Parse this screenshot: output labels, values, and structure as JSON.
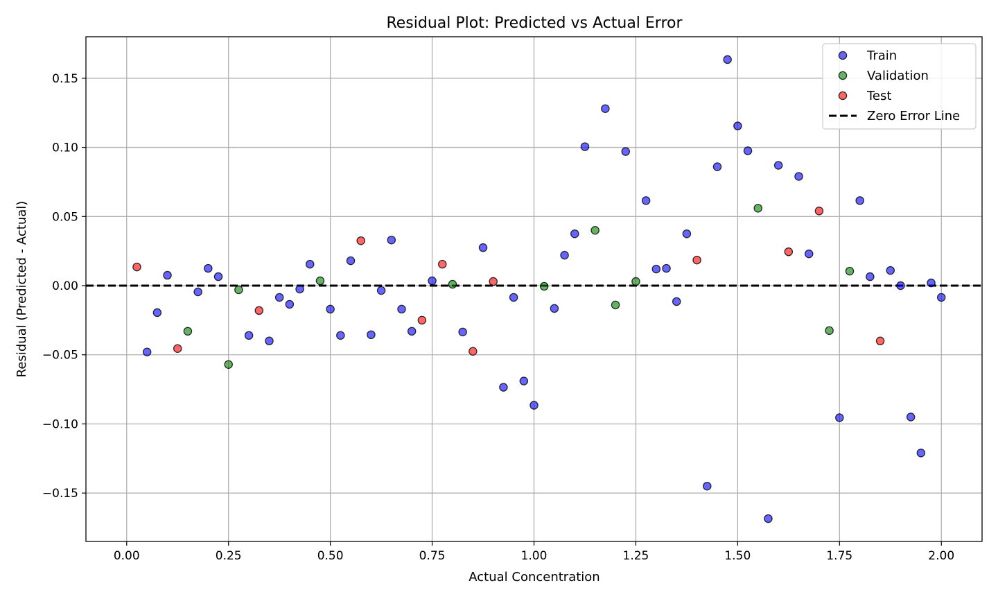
{
  "chart_data": {
    "type": "scatter",
    "title": "Residual Plot: Predicted vs Actual Error",
    "xlabel": "Actual Concentration",
    "ylabel": "Residual (Predicted - Actual)",
    "xlim": [
      -0.1,
      2.1
    ],
    "ylim": [
      -0.185,
      0.18
    ],
    "xticks": [
      0.0,
      0.25,
      0.5,
      0.75,
      1.0,
      1.25,
      1.5,
      1.75,
      2.0
    ],
    "xtick_labels": [
      "0.00",
      "0.25",
      "0.50",
      "0.75",
      "1.00",
      "1.25",
      "1.50",
      "1.75",
      "2.00"
    ],
    "yticks": [
      -0.15,
      -0.1,
      -0.05,
      0.0,
      0.05,
      0.1,
      0.15
    ],
    "ytick_labels": [
      "−0.15",
      "−0.10",
      "−0.05",
      "0.00",
      "0.05",
      "0.10",
      "0.15"
    ],
    "grid": true,
    "legend_position": "top-right",
    "series": [
      {
        "name": "Train",
        "color": "#0000ff",
        "points": [
          [
            0.05,
            -0.048
          ],
          [
            0.075,
            -0.0195
          ],
          [
            0.1,
            0.0075
          ],
          [
            0.175,
            -0.0045
          ],
          [
            0.2,
            0.0125
          ],
          [
            0.225,
            0.0065
          ],
          [
            0.3,
            -0.036
          ],
          [
            0.35,
            -0.04
          ],
          [
            0.375,
            -0.0085
          ],
          [
            0.4,
            -0.0135
          ],
          [
            0.425,
            -0.0025
          ],
          [
            0.45,
            0.0155
          ],
          [
            0.5,
            -0.017
          ],
          [
            0.525,
            -0.036
          ],
          [
            0.55,
            0.018
          ],
          [
            0.6,
            -0.0355
          ],
          [
            0.625,
            -0.0035
          ],
          [
            0.65,
            0.033
          ],
          [
            0.675,
            -0.017
          ],
          [
            0.7,
            -0.033
          ],
          [
            0.75,
            0.0035
          ],
          [
            0.825,
            -0.0335
          ],
          [
            0.875,
            0.0275
          ],
          [
            0.925,
            -0.0735
          ],
          [
            0.95,
            -0.0085
          ],
          [
            0.975,
            -0.069
          ],
          [
            1.0,
            -0.0865
          ],
          [
            1.05,
            -0.0165
          ],
          [
            1.075,
            0.022
          ],
          [
            1.1,
            0.0375
          ],
          [
            1.125,
            0.1005
          ],
          [
            1.175,
            0.128
          ],
          [
            1.225,
            0.097
          ],
          [
            1.275,
            0.0615
          ],
          [
            1.3,
            0.012
          ],
          [
            1.325,
            0.0125
          ],
          [
            1.35,
            -0.0115
          ],
          [
            1.375,
            0.0375
          ],
          [
            1.425,
            -0.145
          ],
          [
            1.45,
            0.086
          ],
          [
            1.475,
            0.1635
          ],
          [
            1.5,
            0.1155
          ],
          [
            1.525,
            0.0975
          ],
          [
            1.575,
            -0.1685
          ],
          [
            1.6,
            0.087
          ],
          [
            1.65,
            0.079
          ],
          [
            1.675,
            0.023
          ],
          [
            1.75,
            -0.0955
          ],
          [
            1.8,
            0.0615
          ],
          [
            1.825,
            0.0065
          ],
          [
            1.875,
            0.011
          ],
          [
            1.9,
            0.0
          ],
          [
            1.925,
            -0.095
          ],
          [
            1.95,
            -0.121
          ],
          [
            1.975,
            0.002
          ],
          [
            2.0,
            -0.0085
          ]
        ]
      },
      {
        "name": "Validation",
        "color": "#008000",
        "points": [
          [
            0.15,
            -0.033
          ],
          [
            0.25,
            -0.057
          ],
          [
            0.275,
            -0.003
          ],
          [
            0.475,
            0.0035
          ],
          [
            0.8,
            0.001
          ],
          [
            1.025,
            -0.0005
          ],
          [
            1.15,
            0.04
          ],
          [
            1.2,
            -0.014
          ],
          [
            1.25,
            0.003
          ],
          [
            1.55,
            0.056
          ],
          [
            1.725,
            -0.0325
          ],
          [
            1.775,
            0.0105
          ]
        ]
      },
      {
        "name": "Test",
        "color": "#ff0000",
        "points": [
          [
            0.025,
            0.0135
          ],
          [
            0.125,
            -0.0455
          ],
          [
            0.325,
            -0.018
          ],
          [
            0.575,
            0.0325
          ],
          [
            0.725,
            -0.025
          ],
          [
            0.775,
            0.0155
          ],
          [
            0.85,
            -0.0475
          ],
          [
            0.9,
            0.003
          ],
          [
            1.4,
            0.0185
          ],
          [
            1.625,
            0.0245
          ],
          [
            1.7,
            0.054
          ],
          [
            1.85,
            -0.04
          ]
        ]
      }
    ],
    "reference_line": {
      "name": "Zero Error Line",
      "y": 0.0,
      "color": "#000000",
      "style": "dashed"
    }
  }
}
